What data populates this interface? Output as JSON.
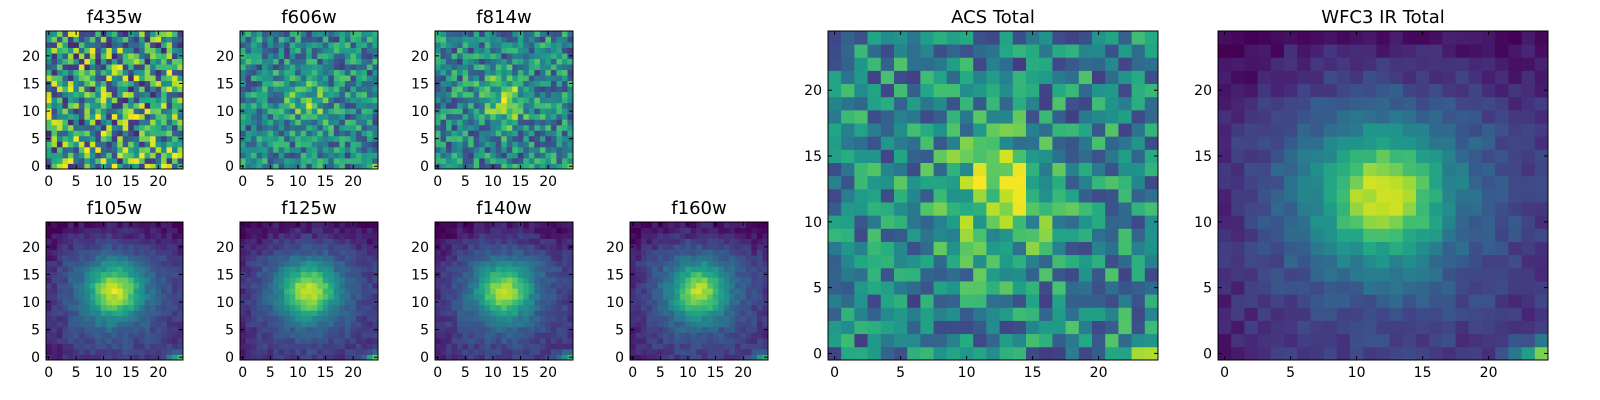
{
  "chart_data": [
    {
      "type": "heatmap",
      "title": "f435w",
      "grid": [
        25,
        25
      ],
      "xticks": [
        0,
        5,
        10,
        15,
        20
      ],
      "yticks": [
        0,
        5,
        10,
        15,
        20
      ],
      "xlim": [
        -0.5,
        24.5
      ],
      "ylim": [
        -0.5,
        24.5
      ],
      "colormap": "viridis",
      "pattern": "noise",
      "source_center": [
        12,
        12
      ],
      "source_strength": 0.0,
      "corner_strength": 0.0
    },
    {
      "type": "heatmap",
      "title": "f606w",
      "grid": [
        25,
        25
      ],
      "xticks": [
        0,
        5,
        10,
        15,
        20
      ],
      "yticks": [
        0,
        5,
        10,
        15,
        20
      ],
      "xlim": [
        -0.5,
        24.5
      ],
      "ylim": [
        -0.5,
        24.5
      ],
      "colormap": "viridis",
      "pattern": "noisy-source",
      "source_center": [
        12,
        12
      ],
      "source_strength": 0.25,
      "corner_strength": 0.3
    },
    {
      "type": "heatmap",
      "title": "f814w",
      "grid": [
        25,
        25
      ],
      "xticks": [
        0,
        5,
        10,
        15,
        20
      ],
      "yticks": [
        0,
        5,
        10,
        15,
        20
      ],
      "xlim": [
        -0.5,
        24.5
      ],
      "ylim": [
        -0.5,
        24.5
      ],
      "colormap": "viridis",
      "pattern": "noisy-source",
      "source_center": [
        12,
        12
      ],
      "source_strength": 0.35,
      "corner_strength": 0.5
    },
    {
      "type": "heatmap",
      "title": "f105w",
      "grid": [
        25,
        25
      ],
      "xticks": [
        0,
        5,
        10,
        15,
        20
      ],
      "yticks": [
        0,
        5,
        10,
        15,
        20
      ],
      "xlim": [
        -0.5,
        24.5
      ],
      "ylim": [
        -0.5,
        24.5
      ],
      "colormap": "viridis",
      "pattern": "smooth-source",
      "source_center": [
        12,
        12
      ],
      "source_strength": 0.5,
      "corner_strength": 0.9
    },
    {
      "type": "heatmap",
      "title": "f125w",
      "grid": [
        25,
        25
      ],
      "xticks": [
        0,
        5,
        10,
        15,
        20
      ],
      "yticks": [
        0,
        5,
        10,
        15,
        20
      ],
      "xlim": [
        -0.5,
        24.5
      ],
      "ylim": [
        -0.5,
        24.5
      ],
      "colormap": "viridis",
      "pattern": "smooth-source",
      "source_center": [
        12,
        12
      ],
      "source_strength": 0.5,
      "corner_strength": 0.9
    },
    {
      "type": "heatmap",
      "title": "f140w",
      "grid": [
        25,
        25
      ],
      "xticks": [
        0,
        5,
        10,
        15,
        20
      ],
      "yticks": [
        0,
        5,
        10,
        15,
        20
      ],
      "xlim": [
        -0.5,
        24.5
      ],
      "ylim": [
        -0.5,
        24.5
      ],
      "colormap": "viridis",
      "pattern": "smooth-source",
      "source_center": [
        12,
        12
      ],
      "source_strength": 0.45,
      "corner_strength": 0.9
    },
    {
      "type": "heatmap",
      "title": "f160w",
      "grid": [
        25,
        25
      ],
      "xticks": [
        0,
        5,
        10,
        15,
        20
      ],
      "yticks": [
        0,
        5,
        10,
        15,
        20
      ],
      "xlim": [
        -0.5,
        24.5
      ],
      "ylim": [
        -0.5,
        24.5
      ],
      "colormap": "viridis",
      "pattern": "smooth-source",
      "source_center": [
        12,
        12
      ],
      "source_strength": 0.45,
      "corner_strength": 0.9
    },
    {
      "type": "heatmap",
      "title": "ACS Total",
      "grid": [
        25,
        25
      ],
      "xticks": [
        0,
        5,
        10,
        15,
        20
      ],
      "yticks": [
        0,
        5,
        10,
        15,
        20
      ],
      "xlim": [
        -0.5,
        24.5
      ],
      "ylim": [
        -0.5,
        24.5
      ],
      "colormap": "viridis",
      "pattern": "noisy-source",
      "source_center": [
        12,
        12
      ],
      "source_strength": 0.4,
      "corner_strength": 0.6
    },
    {
      "type": "heatmap",
      "title": "WFC3 IR Total",
      "grid": [
        25,
        25
      ],
      "xticks": [
        0,
        5,
        10,
        15,
        20
      ],
      "yticks": [
        0,
        5,
        10,
        15,
        20
      ],
      "xlim": [
        -0.5,
        24.5
      ],
      "ylim": [
        -0.5,
        24.5
      ],
      "colormap": "viridis",
      "pattern": "smooth-source",
      "source_center": [
        12,
        12
      ],
      "source_strength": 0.5,
      "corner_strength": 1.0
    }
  ]
}
